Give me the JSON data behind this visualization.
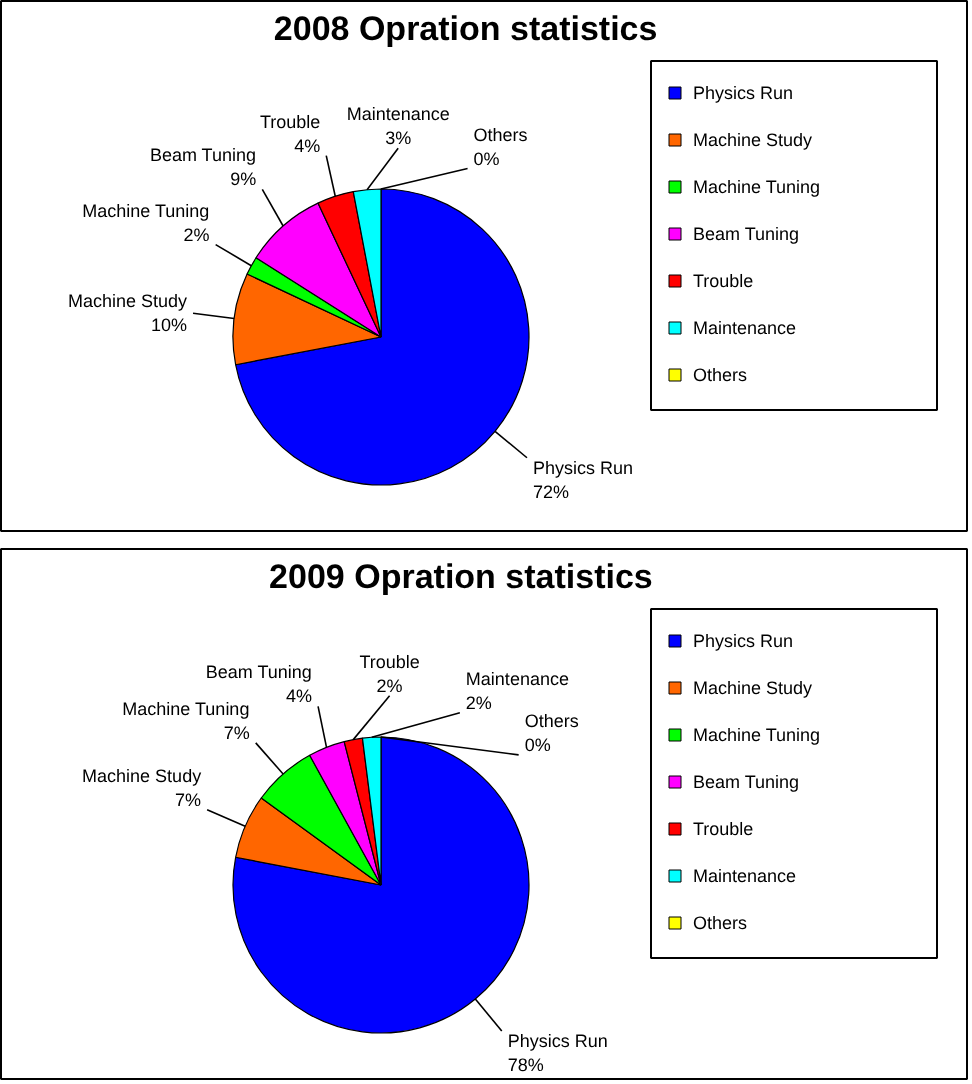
{
  "chart_data": [
    {
      "type": "pie",
      "title": "2008 Opration statistics",
      "categories": [
        "Physics Run",
        "Machine Study",
        "Machine Tuning",
        "Beam Tuning",
        "Trouble",
        "Maintenance",
        "Others"
      ],
      "values": [
        72,
        10,
        2,
        9,
        4,
        3,
        0
      ],
      "value_labels": [
        "72%",
        "10%",
        "2%",
        "9%",
        "4%",
        "3%",
        "0%"
      ],
      "colors": [
        "#0000ff",
        "#ff6600",
        "#00ff00",
        "#ff00ff",
        "#ff0000",
        "#00ffff",
        "#ffff00"
      ],
      "legend": "right"
    },
    {
      "type": "pie",
      "title": "2009  Opration statistics",
      "categories": [
        "Physics Run",
        "Machine Study",
        "Machine Tuning",
        "Beam Tuning",
        "Trouble",
        "Maintenance",
        "Others"
      ],
      "values": [
        78,
        7,
        7,
        4,
        2,
        2,
        0
      ],
      "value_labels": [
        "78%",
        "7%",
        "7%",
        "4%",
        "2%",
        "2%",
        "0%"
      ],
      "colors": [
        "#0000ff",
        "#ff6600",
        "#00ff00",
        "#ff00ff",
        "#ff0000",
        "#00ffff",
        "#ffff00"
      ],
      "legend": "right"
    }
  ]
}
